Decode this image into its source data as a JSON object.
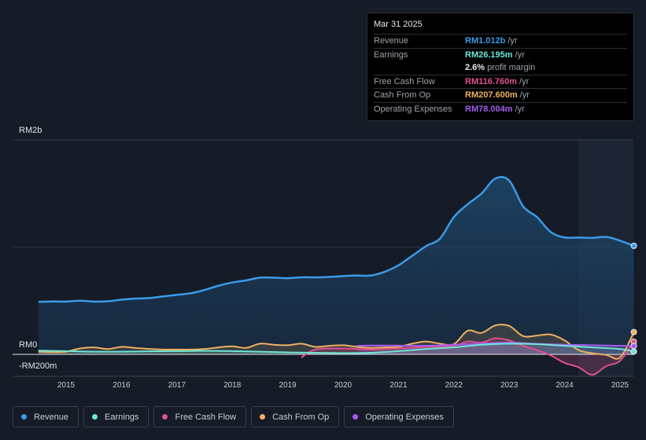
{
  "tooltip": {
    "date": "Mar 31 2025",
    "rows": [
      {
        "label": "Revenue",
        "value": "RM1.012b",
        "unit": "/yr",
        "color": "#3b9be8"
      },
      {
        "label": "Earnings",
        "value": "RM26.195m",
        "unit": "/yr",
        "color": "#6ee7d6"
      },
      {
        "label": "",
        "value": "2.6%",
        "unit": "profit margin",
        "color": "#e8eaee"
      },
      {
        "label": "Free Cash Flow",
        "value": "RM116.760m",
        "unit": "/yr",
        "color": "#e0508f"
      },
      {
        "label": "Cash From Op",
        "value": "RM207.600m",
        "unit": "/yr",
        "color": "#f0b060"
      },
      {
        "label": "Operating Expenses",
        "value": "RM78.004m",
        "unit": "/yr",
        "color": "#a65cf0"
      }
    ]
  },
  "legend": [
    {
      "label": "Revenue",
      "color": "#3b9be8"
    },
    {
      "label": "Earnings",
      "color": "#6ee7d6"
    },
    {
      "label": "Free Cash Flow",
      "color": "#e0508f"
    },
    {
      "label": "Cash From Op",
      "color": "#f0b060"
    },
    {
      "label": "Operating Expenses",
      "color": "#a65cf0"
    }
  ],
  "chart_data": {
    "type": "area",
    "y_tick_labels": [
      "RM2b",
      "RM0",
      "-RM200m"
    ],
    "ylim": [
      -200,
      2000
    ],
    "xlim": [
      2014.5,
      2025.25
    ],
    "x_ticks": [
      "2015",
      "2016",
      "2017",
      "2018",
      "2019",
      "2020",
      "2021",
      "2022",
      "2023",
      "2024",
      "2025"
    ],
    "forecast_start": 2024.25,
    "series": [
      {
        "name": "Revenue",
        "color": "#3b9be8",
        "x": [
          2014.5,
          2014.75,
          2015,
          2015.25,
          2015.5,
          2015.75,
          2016,
          2016.25,
          2016.5,
          2016.75,
          2017,
          2017.25,
          2017.5,
          2017.75,
          2018,
          2018.25,
          2018.5,
          2018.75,
          2019,
          2019.25,
          2019.5,
          2019.75,
          2020,
          2020.25,
          2020.5,
          2020.75,
          2021,
          2021.25,
          2021.5,
          2021.75,
          2022,
          2022.25,
          2022.5,
          2022.75,
          2023,
          2023.25,
          2023.5,
          2023.75,
          2024,
          2024.25,
          2024.5,
          2024.75,
          2025,
          2025.25
        ],
        "values": [
          490,
          493,
          492,
          500,
          492,
          495,
          510,
          520,
          525,
          540,
          555,
          570,
          600,
          640,
          670,
          690,
          715,
          715,
          710,
          718,
          718,
          722,
          730,
          735,
          735,
          770,
          830,
          920,
          1010,
          1080,
          1280,
          1400,
          1500,
          1640,
          1620,
          1380,
          1280,
          1140,
          1090,
          1090,
          1085,
          1095,
          1060,
          1012
        ]
      },
      {
        "name": "Earnings",
        "color": "#6ee7d6",
        "x": [
          2014.5,
          2015,
          2015.5,
          2016,
          2016.5,
          2017,
          2017.5,
          2018,
          2018.5,
          2019,
          2019.5,
          2020,
          2020.5,
          2021,
          2021.5,
          2022,
          2022.5,
          2023,
          2023.5,
          2024,
          2024.5,
          2025,
          2025.25
        ],
        "values": [
          35,
          30,
          25,
          25,
          28,
          30,
          33,
          30,
          25,
          18,
          15,
          12,
          15,
          30,
          50,
          65,
          90,
          100,
          95,
          80,
          65,
          50,
          26
        ]
      },
      {
        "name": "Free Cash Flow",
        "color": "#e0508f",
        "x": [
          2019.25,
          2019.5,
          2020,
          2020.5,
          2021,
          2021.5,
          2022,
          2022.25,
          2022.5,
          2022.75,
          2023,
          2023.25,
          2023.5,
          2023.75,
          2024,
          2024.25,
          2024.5,
          2024.75,
          2025,
          2025.25
        ],
        "values": [
          -30,
          45,
          55,
          45,
          55,
          70,
          80,
          120,
          110,
          150,
          130,
          80,
          40,
          -10,
          -80,
          -120,
          -190,
          -110,
          -60,
          117
        ]
      },
      {
        "name": "Cash From Op",
        "color": "#f0b060",
        "x": [
          2014.5,
          2014.75,
          2015,
          2015.25,
          2015.5,
          2015.75,
          2016,
          2016.25,
          2016.5,
          2016.75,
          2017,
          2017.25,
          2017.5,
          2017.75,
          2018,
          2018.25,
          2018.5,
          2018.75,
          2019,
          2019.25,
          2019.5,
          2019.75,
          2020,
          2020.25,
          2020.5,
          2020.75,
          2021,
          2021.25,
          2021.5,
          2021.75,
          2022,
          2022.25,
          2022.5,
          2022.75,
          2023,
          2023.25,
          2023.5,
          2023.75,
          2024,
          2024.25,
          2024.5,
          2024.75,
          2025,
          2025.25
        ],
        "values": [
          25,
          20,
          25,
          55,
          65,
          50,
          70,
          60,
          50,
          45,
          45,
          45,
          50,
          65,
          75,
          60,
          100,
          90,
          85,
          100,
          70,
          80,
          85,
          70,
          60,
          65,
          70,
          100,
          120,
          100,
          95,
          220,
          200,
          270,
          265,
          170,
          175,
          185,
          130,
          40,
          10,
          -5,
          -30,
          208
        ]
      },
      {
        "name": "Operating Expenses",
        "color": "#a65cf0",
        "x": [
          2020.25,
          2020.5,
          2021,
          2021.5,
          2022,
          2022.5,
          2023,
          2023.5,
          2024,
          2024.5,
          2025,
          2025.25
        ],
        "values": [
          80,
          82,
          82,
          80,
          90,
          100,
          110,
          98,
          90,
          85,
          80,
          78
        ]
      }
    ]
  }
}
